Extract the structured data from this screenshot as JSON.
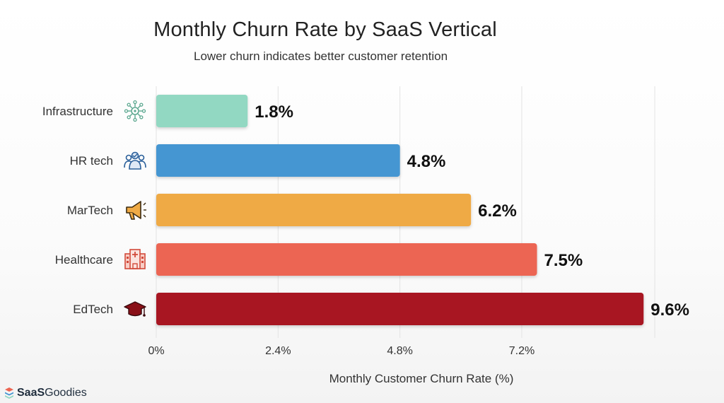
{
  "title": "Monthly Churn Rate by SaaS Vertical",
  "subtitle": "Lower churn indicates better customer retention",
  "logo": {
    "part1": "SaaS",
    "part2": "Goodies"
  },
  "chart_data": {
    "type": "bar",
    "orientation": "horizontal",
    "title": "Monthly Churn Rate by SaaS Vertical",
    "subtitle": "Lower churn indicates better customer retention",
    "xlabel": "Monthly Customer Churn Rate (%)",
    "ylabel": "",
    "xlim": [
      0,
      10
    ],
    "xticks": [
      0,
      2.4,
      4.8,
      7.2
    ],
    "xtick_labels": [
      "0%",
      "2.4%",
      "4.8%",
      "7.2%"
    ],
    "grid": "vertical",
    "categories": [
      "Infrastructure",
      "HR tech",
      "MarTech",
      "Healthcare",
      "EdTech"
    ],
    "values": [
      1.8,
      4.8,
      6.2,
      7.5,
      9.6
    ],
    "value_labels": [
      "1.8%",
      "4.8%",
      "6.2%",
      "7.5%",
      "9.6%"
    ],
    "colors": [
      "#92d8c2",
      "#4596d2",
      "#efaa45",
      "#ec6552",
      "#a81820"
    ],
    "icons": [
      "network-gear-icon",
      "people-group-icon",
      "megaphone-icon",
      "hospital-icon",
      "graduation-cap-icon"
    ]
  }
}
